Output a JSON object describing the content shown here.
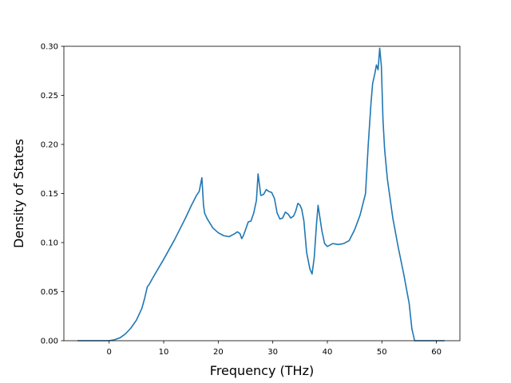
{
  "chart_data": {
    "type": "line",
    "title": "",
    "xlabel": "Frequency (THz)",
    "ylabel": "Density of States",
    "xlim": [
      -8.3,
      64.3
    ],
    "ylim": [
      0.0,
      0.3
    ],
    "xticks": [
      0,
      10,
      20,
      30,
      40,
      50,
      60
    ],
    "xtick_labels": [
      "0",
      "10",
      "20",
      "30",
      "40",
      "50",
      "60"
    ],
    "yticks": [
      0.0,
      0.05,
      0.1,
      0.15,
      0.2,
      0.25,
      0.3
    ],
    "ytick_labels": [
      "0.00",
      "0.05",
      "0.10",
      "0.15",
      "0.20",
      "0.25",
      "0.30"
    ],
    "grid": false,
    "line_color": "#1f77b4",
    "series": [
      {
        "x": [
          -5.8,
          -4,
          -2,
          0,
          1,
          2,
          3,
          4,
          5,
          6,
          6.5,
          7,
          7.3,
          8,
          10,
          12,
          14,
          15,
          16,
          16.5,
          17,
          17.3,
          17.5,
          18,
          19,
          20,
          21,
          22,
          23,
          23.5,
          24,
          24.3,
          24.6,
          25,
          25.5,
          26,
          26.5,
          27,
          27.3,
          27.8,
          28.3,
          28.8,
          29.3,
          29.8,
          30.3,
          30.8,
          31.3,
          31.8,
          32.3,
          32.8,
          33.3,
          33.8,
          34.2,
          34.6,
          35,
          35.3,
          35.7,
          36.2,
          36.8,
          37.2,
          37.6,
          38,
          38.3,
          39,
          39.5,
          40,
          41,
          42,
          43,
          44,
          45,
          46,
          47,
          47.5,
          48,
          48.3,
          48.7,
          49,
          49.3,
          49.6,
          49.9,
          50.2,
          50.5,
          51,
          52,
          53,
          54,
          55,
          55.5,
          56,
          56.5,
          58,
          60,
          61.5
        ],
        "y": [
          0.0,
          0.0,
          0.0,
          0.0,
          0.001,
          0.003,
          0.007,
          0.013,
          0.021,
          0.033,
          0.043,
          0.055,
          0.057,
          0.064,
          0.083,
          0.103,
          0.125,
          0.137,
          0.148,
          0.152,
          0.166,
          0.138,
          0.13,
          0.124,
          0.115,
          0.11,
          0.107,
          0.106,
          0.109,
          0.111,
          0.109,
          0.104,
          0.107,
          0.113,
          0.121,
          0.122,
          0.13,
          0.143,
          0.17,
          0.148,
          0.149,
          0.154,
          0.152,
          0.151,
          0.145,
          0.13,
          0.124,
          0.125,
          0.131,
          0.129,
          0.125,
          0.127,
          0.132,
          0.14,
          0.138,
          0.134,
          0.122,
          0.09,
          0.073,
          0.068,
          0.085,
          0.118,
          0.138,
          0.112,
          0.099,
          0.096,
          0.099,
          0.098,
          0.099,
          0.102,
          0.113,
          0.128,
          0.15,
          0.2,
          0.242,
          0.262,
          0.272,
          0.281,
          0.276,
          0.298,
          0.28,
          0.225,
          0.195,
          0.165,
          0.125,
          0.095,
          0.068,
          0.038,
          0.012,
          0.0,
          0.0,
          0.0,
          0.0,
          0.0
        ]
      }
    ]
  }
}
